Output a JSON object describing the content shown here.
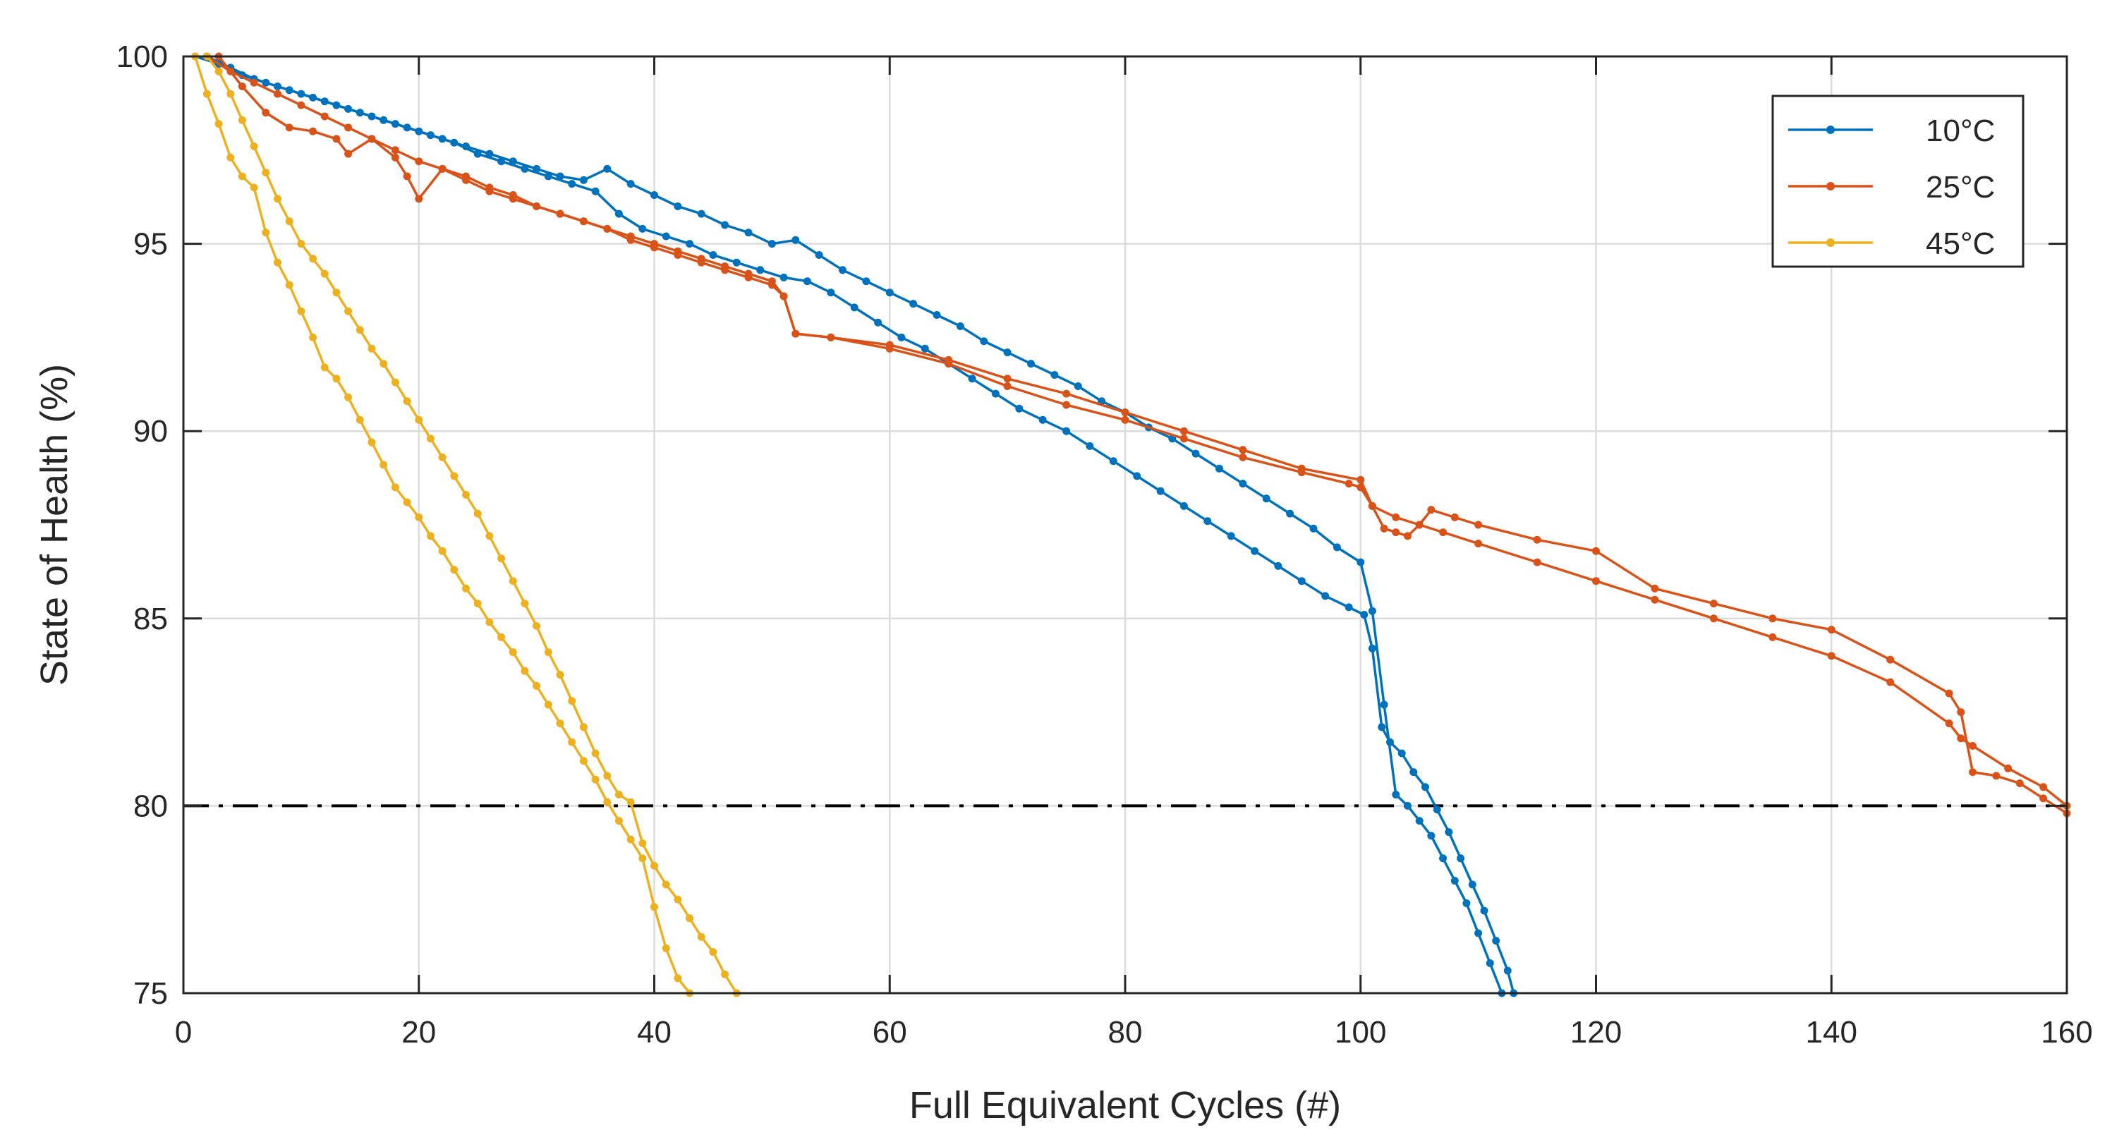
{
  "chart_data": {
    "type": "line",
    "title": "",
    "xlabel": "Full Equivalent Cycles (#)",
    "ylabel": "State of Health (%)",
    "xlim": [
      0,
      160
    ],
    "ylim": [
      75,
      100
    ],
    "xticks": [
      0,
      20,
      40,
      60,
      80,
      100,
      120,
      140,
      160
    ],
    "yticks": [
      75,
      80,
      85,
      90,
      95,
      100
    ],
    "grid": true,
    "legend_position": "top-right",
    "threshold": {
      "y": 80,
      "style": "dash-dot",
      "color": "#000000"
    },
    "series": [
      {
        "name": "10°C",
        "color": "#0072BD",
        "x": [
          1,
          3,
          5,
          7,
          9,
          11,
          13,
          15,
          17,
          19,
          21,
          23,
          25,
          27,
          29,
          31,
          33,
          35,
          37,
          39,
          41,
          43,
          45,
          47,
          49,
          51,
          53,
          55,
          57,
          59,
          61,
          63,
          65,
          67,
          69,
          71,
          73,
          75,
          77,
          79,
          81,
          83,
          85,
          87,
          89,
          91,
          93,
          95,
          97,
          99,
          100.3,
          101,
          101.8,
          102.5,
          103.5,
          104.5,
          105.5,
          106.5,
          107.5,
          108.5,
          109.5,
          110.5,
          111.5,
          112.5,
          113
        ],
        "y": [
          100,
          99.8,
          99.5,
          99.3,
          99.1,
          98.9,
          98.7,
          98.5,
          98.3,
          98.1,
          97.9,
          97.7,
          97.4,
          97.2,
          97,
          96.8,
          96.6,
          96.4,
          95.8,
          95.4,
          95.2,
          95,
          94.7,
          94.5,
          94.3,
          94.1,
          94,
          93.7,
          93.3,
          92.9,
          92.5,
          92.2,
          91.8,
          91.4,
          91,
          90.6,
          90.3,
          90,
          89.6,
          89.2,
          88.8,
          88.4,
          88,
          87.6,
          87.2,
          86.8,
          86.4,
          86,
          85.6,
          85.3,
          85.1,
          84.2,
          82.1,
          81.7,
          81.4,
          80.9,
          80.5,
          79.9,
          79.3,
          78.6,
          77.9,
          77.2,
          76.4,
          75.6,
          75
        ]
      },
      {
        "name": "10°C",
        "color": "#0072BD",
        "x": [
          2,
          4,
          6,
          8,
          10,
          12,
          14,
          16,
          18,
          20,
          22,
          24,
          26,
          28,
          30,
          32,
          34,
          36,
          38,
          40,
          42,
          44,
          46,
          48,
          50,
          52,
          54,
          56,
          58,
          60,
          62,
          64,
          66,
          68,
          70,
          72,
          74,
          76,
          78,
          80,
          82,
          84,
          86,
          88,
          90,
          92,
          94,
          96,
          98,
          100,
          101,
          102,
          103,
          104,
          105,
          106,
          107,
          108,
          109,
          110,
          111,
          112
        ],
        "y": [
          100,
          99.7,
          99.4,
          99.2,
          99,
          98.8,
          98.6,
          98.4,
          98.2,
          98,
          97.8,
          97.6,
          97.4,
          97.2,
          97,
          96.8,
          96.7,
          97,
          96.6,
          96.3,
          96,
          95.8,
          95.5,
          95.3,
          95,
          95.1,
          94.7,
          94.3,
          94,
          93.7,
          93.4,
          93.1,
          92.8,
          92.4,
          92.1,
          91.8,
          91.5,
          91.2,
          90.8,
          90.5,
          90.1,
          89.8,
          89.4,
          89,
          88.6,
          88.2,
          87.8,
          87.4,
          86.9,
          86.5,
          85.2,
          82.7,
          80.3,
          80,
          79.6,
          79.2,
          78.6,
          78,
          77.4,
          76.6,
          75.8,
          75
        ]
      },
      {
        "name": "25°C",
        "color": "#D95319",
        "x": [
          2,
          4,
          6,
          8,
          10,
          12,
          14,
          16,
          18,
          20,
          22,
          24,
          26,
          28,
          30,
          32,
          34,
          36,
          38,
          40,
          42,
          44,
          46,
          48,
          50,
          51,
          52,
          55,
          60,
          65,
          70,
          75,
          80,
          85,
          90,
          95,
          99,
          100,
          101,
          103,
          105,
          107,
          110,
          115,
          120,
          125,
          130,
          135,
          140,
          145,
          150,
          151,
          152,
          155,
          158,
          160
        ],
        "y": [
          100,
          99.6,
          99.3,
          99,
          98.7,
          98.4,
          98.1,
          97.8,
          97.5,
          97.2,
          97,
          96.8,
          96.5,
          96.3,
          96,
          95.8,
          95.6,
          95.4,
          95.1,
          94.9,
          94.7,
          94.5,
          94.3,
          94.1,
          93.9,
          93.6,
          92.6,
          92.5,
          92.2,
          91.8,
          91.2,
          90.7,
          90.3,
          89.8,
          89.3,
          88.9,
          88.6,
          88.5,
          88,
          87.7,
          87.5,
          87.3,
          87,
          86.5,
          86,
          85.5,
          85,
          84.5,
          84,
          83.3,
          82.2,
          81.8,
          81.6,
          81,
          80.5,
          80
        ]
      },
      {
        "name": "25°C",
        "color": "#D95319",
        "x": [
          3,
          5,
          7,
          9,
          11,
          13,
          14,
          16,
          18,
          19,
          20,
          22,
          24,
          26,
          28,
          30,
          32,
          34,
          36,
          38,
          40,
          42,
          44,
          46,
          48,
          50,
          51,
          52,
          55,
          60,
          65,
          70,
          75,
          80,
          85,
          90,
          95,
          100,
          101,
          102,
          103,
          104,
          105,
          106,
          108,
          110,
          115,
          120,
          125,
          130,
          135,
          140,
          145,
          150,
          151,
          152,
          154,
          156,
          158,
          160
        ],
        "y": [
          100,
          99.2,
          98.5,
          98.1,
          98,
          97.8,
          97.4,
          97.8,
          97.3,
          96.8,
          96.2,
          97,
          96.7,
          96.4,
          96.2,
          96,
          95.8,
          95.6,
          95.4,
          95.2,
          95,
          94.8,
          94.6,
          94.4,
          94.2,
          94,
          93.6,
          92.6,
          92.5,
          92.3,
          91.9,
          91.4,
          91,
          90.5,
          90,
          89.5,
          89,
          88.7,
          88,
          87.4,
          87.3,
          87.2,
          87.5,
          87.9,
          87.7,
          87.5,
          87.1,
          86.8,
          85.8,
          85.4,
          85,
          84.7,
          83.9,
          83,
          82.5,
          80.9,
          80.8,
          80.6,
          80.2,
          79.8
        ]
      },
      {
        "name": "45°C",
        "color": "#EDB120",
        "x": [
          1,
          2,
          3,
          4,
          5,
          6,
          7,
          8,
          9,
          10,
          11,
          12,
          13,
          14,
          15,
          16,
          17,
          18,
          19,
          20,
          21,
          22,
          23,
          24,
          25,
          26,
          27,
          28,
          29,
          30,
          31,
          32,
          33,
          34,
          35,
          36,
          37,
          38,
          39,
          40,
          41,
          42,
          43
        ],
        "y": [
          100,
          99,
          98.2,
          97.3,
          96.8,
          96.5,
          95.3,
          94.5,
          93.9,
          93.2,
          92.5,
          91.7,
          91.4,
          90.9,
          90.3,
          89.7,
          89.1,
          88.5,
          88.1,
          87.7,
          87.2,
          86.8,
          86.3,
          85.8,
          85.4,
          84.9,
          84.5,
          84.1,
          83.6,
          83.2,
          82.7,
          82.2,
          81.7,
          81.2,
          80.7,
          80.1,
          79.6,
          79.1,
          78.6,
          77.3,
          76.2,
          75.4,
          75
        ]
      },
      {
        "name": "45°C",
        "color": "#EDB120",
        "x": [
          2,
          3,
          4,
          5,
          6,
          7,
          8,
          9,
          10,
          11,
          12,
          13,
          14,
          15,
          16,
          17,
          18,
          19,
          20,
          21,
          22,
          23,
          24,
          25,
          26,
          27,
          28,
          29,
          30,
          31,
          32,
          33,
          34,
          35,
          36,
          37,
          38,
          39,
          40,
          41,
          42,
          43,
          44,
          45,
          46,
          47
        ],
        "y": [
          100,
          99.6,
          99,
          98.3,
          97.6,
          96.9,
          96.2,
          95.6,
          95,
          94.6,
          94.2,
          93.7,
          93.2,
          92.7,
          92.2,
          91.8,
          91.3,
          90.8,
          90.3,
          89.8,
          89.3,
          88.8,
          88.3,
          87.8,
          87.2,
          86.6,
          86,
          85.4,
          84.8,
          84.1,
          83.5,
          82.8,
          82.1,
          81.4,
          80.8,
          80.3,
          80.1,
          79,
          78.4,
          77.9,
          77.5,
          77,
          76.5,
          76.1,
          75.5,
          75
        ]
      }
    ],
    "legend": [
      {
        "label": "10°C",
        "color": "#0072BD"
      },
      {
        "label": "25°C",
        "color": "#D95319"
      },
      {
        "label": "45°C",
        "color": "#EDB120"
      }
    ]
  }
}
